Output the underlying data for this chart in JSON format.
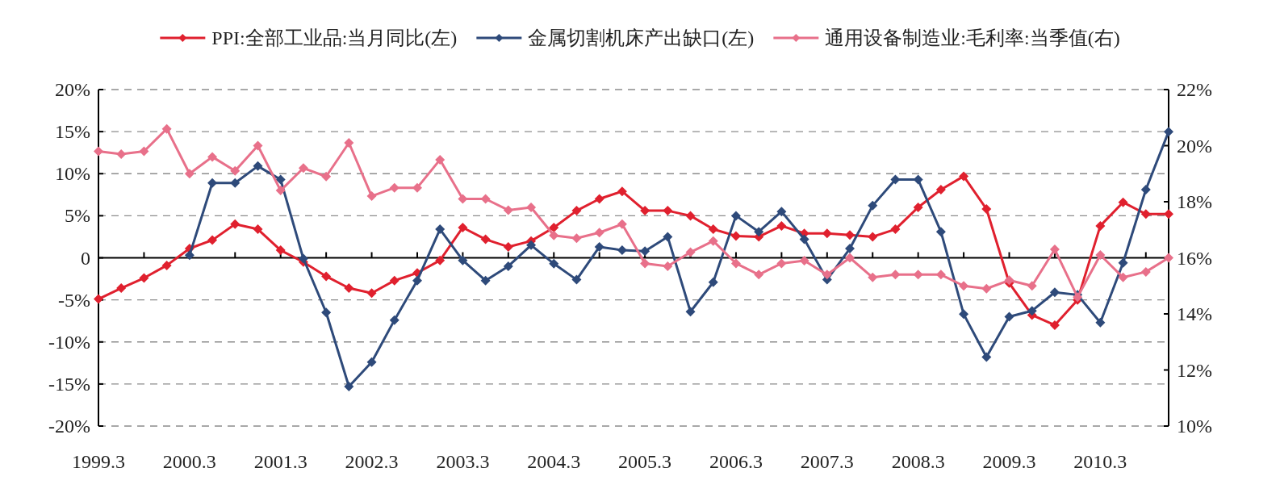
{
  "chart_data": {
    "type": "line",
    "categories": [
      "1999.3",
      null,
      null,
      null,
      "2000.3",
      null,
      null,
      null,
      "2001.3",
      null,
      null,
      null,
      "2002.3",
      null,
      null,
      null,
      "2003.3",
      null,
      null,
      null,
      "2004.3",
      null,
      null,
      null,
      "2005.3",
      null,
      null,
      null,
      "2006.3",
      null,
      null,
      null,
      "2007.3",
      null,
      null,
      null,
      "2008.3",
      null,
      null,
      null,
      "2009.3",
      null,
      null,
      null,
      "2010.3",
      null,
      null,
      null
    ],
    "series": [
      {
        "name": "PPI:全部工业品:当月同比(左)",
        "color": "#e0202e",
        "axis": "y",
        "values": [
          -4.9,
          -3.6,
          -2.4,
          -0.9,
          1.1,
          2.1,
          4.0,
          3.4,
          0.9,
          -0.5,
          -2.2,
          -3.6,
          -4.2,
          -2.7,
          -1.8,
          -0.3,
          3.6,
          2.2,
          1.3,
          2.0,
          3.6,
          5.6,
          7.0,
          7.9,
          5.6,
          5.6,
          5.0,
          3.4,
          2.6,
          2.5,
          3.8,
          2.9,
          2.9,
          2.7,
          2.5,
          3.4,
          6.0,
          8.1,
          9.7,
          5.8,
          -3.0,
          -6.8,
          -8.0,
          -5.0,
          3.8,
          6.6,
          5.2,
          5.2
        ]
      },
      {
        "name": "金属切割机床产出缺口(左)",
        "color": "#2e4a7a",
        "axis": "y",
        "values": [
          null,
          null,
          null,
          null,
          0.3,
          8.9,
          8.9,
          10.9,
          9.3,
          -0.1,
          -6.5,
          -15.3,
          -12.4,
          -7.4,
          -2.7,
          3.4,
          -0.3,
          -2.7,
          -1.0,
          1.5,
          -0.7,
          -2.6,
          1.3,
          0.9,
          0.8,
          2.5,
          -6.4,
          -2.9,
          5.0,
          3.1,
          5.5,
          2.2,
          -2.6,
          1.1,
          6.2,
          9.3,
          9.3,
          3.1,
          -6.7,
          -11.8,
          -7.0,
          -6.3,
          -4.1,
          -4.4,
          -7.7,
          -0.6,
          8.1,
          15.0
        ]
      },
      {
        "name": "通用设备制造业:毛利率:当季值(右)",
        "color": "#e8708a",
        "axis": "y2",
        "values": [
          19.8,
          19.7,
          19.8,
          20.6,
          19.0,
          19.6,
          19.1,
          20.0,
          18.4,
          19.2,
          18.9,
          20.1,
          18.2,
          18.5,
          18.5,
          19.5,
          18.1,
          18.1,
          17.7,
          17.8,
          16.8,
          16.7,
          16.9,
          17.2,
          15.8,
          15.7,
          16.2,
          16.6,
          15.8,
          15.4,
          15.8,
          15.9,
          15.4,
          16.0,
          15.3,
          15.4,
          15.4,
          15.4,
          15.0,
          14.9,
          15.2,
          15.0,
          16.3,
          14.6,
          16.1,
          15.3,
          15.5,
          16.0
        ]
      }
    ],
    "ylim": [
      -20,
      20
    ],
    "yticks": [
      {
        "value": -20,
        "label": "-20%"
      },
      {
        "value": -15,
        "label": "-15%"
      },
      {
        "value": -10,
        "label": "-10%"
      },
      {
        "value": -5,
        "label": "-5%"
      },
      0,
      {
        "value": 5,
        "label": "5%"
      },
      {
        "value": 10,
        "label": "10%"
      },
      {
        "value": 15,
        "label": "15%"
      },
      {
        "value": 20,
        "label": "20%"
      }
    ],
    "y2lim": [
      10,
      22
    ],
    "y2ticks": [
      {
        "value": 10,
        "label": "10%"
      },
      {
        "value": 12,
        "label": "12%"
      },
      {
        "value": 14,
        "label": "14%"
      },
      {
        "value": 16,
        "label": "16%"
      },
      {
        "value": 18,
        "label": "18%"
      },
      {
        "value": 20,
        "label": "20%"
      },
      {
        "value": 22,
        "label": "22%"
      }
    ],
    "grid": "y",
    "legend": "top",
    "marker": "diamond",
    "line_style": "solid"
  }
}
